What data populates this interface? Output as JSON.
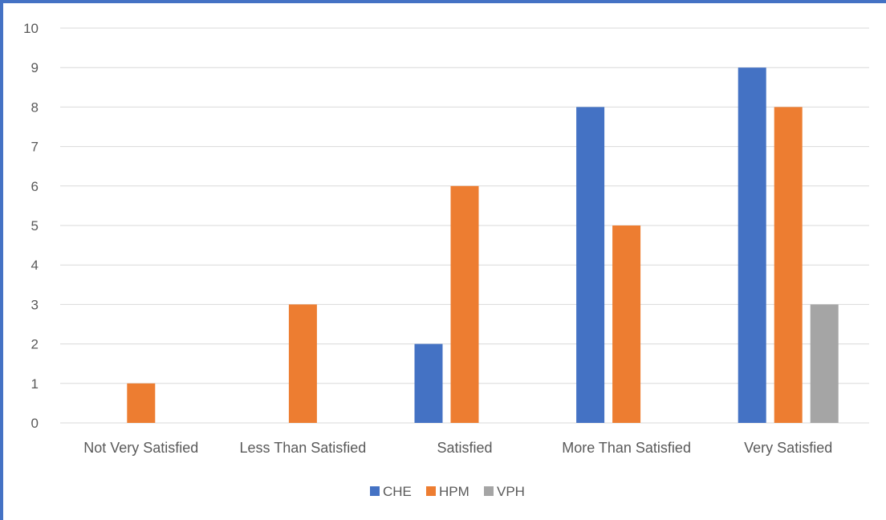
{
  "chart_data": {
    "type": "bar",
    "categories": [
      "Not Very Satisfied",
      "Less Than Satisfied",
      "Satisfied",
      "More Than Satisfied",
      "Very Satisfied"
    ],
    "series": [
      {
        "name": "CHE",
        "values": [
          0,
          0,
          2,
          8,
          9
        ],
        "color": "#4472c4"
      },
      {
        "name": "HPM",
        "values": [
          1,
          3,
          6,
          5,
          8
        ],
        "color": "#ed7d31"
      },
      {
        "name": "VPH",
        "values": [
          0,
          0,
          0,
          0,
          3
        ],
        "color": "#a5a5a5"
      }
    ],
    "ylim": [
      0,
      10
    ],
    "yticks": [
      0,
      1,
      2,
      3,
      4,
      5,
      6,
      7,
      8,
      9,
      10
    ],
    "grid": true,
    "legend": "bottom",
    "gridline_color": "#d9d9d9",
    "frame_color": "#4472c4"
  }
}
